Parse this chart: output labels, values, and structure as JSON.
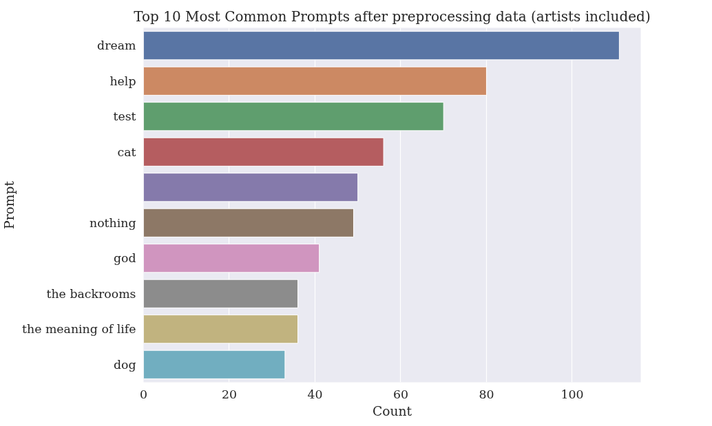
{
  "chart_data": {
    "type": "bar",
    "orientation": "horizontal",
    "title": "Top 10 Most Common Prompts after preprocessing data (artists included)",
    "xlabel": "Count",
    "ylabel": "Prompt",
    "categories": [
      "dream",
      "help",
      "test",
      "cat",
      null,
      "nothing",
      "god",
      "the backrooms",
      "the meaning of life",
      "dog"
    ],
    "values": [
      111,
      80,
      70,
      56,
      50,
      49,
      41,
      36,
      36,
      33
    ],
    "colors": [
      "#5975a4",
      "#cc8963",
      "#5f9e6e",
      "#b55d60",
      "#857aab",
      "#8d7866",
      "#d095bf",
      "#8c8c8c",
      "#c1b37f",
      "#71aec0"
    ],
    "xlim": [
      0,
      116
    ],
    "xticks": [
      0,
      20,
      40,
      60,
      80,
      100
    ],
    "grid": "x"
  }
}
